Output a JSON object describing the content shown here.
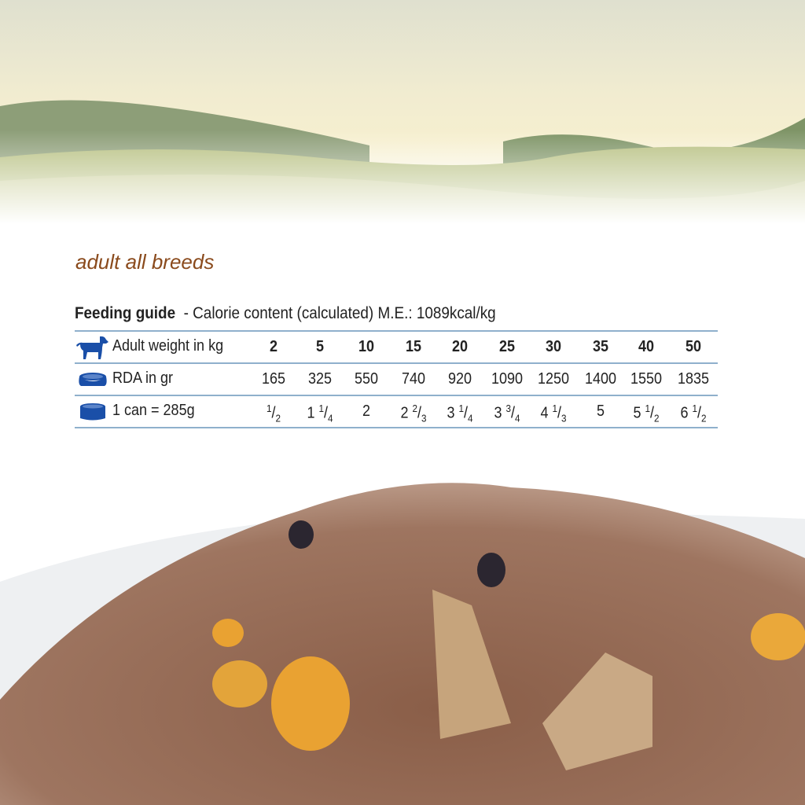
{
  "subtitle": "adult all breeds",
  "guide": {
    "title": "Feeding guide",
    "description": "- Calorie content (calculated) M.E.: 1089kcal/kg"
  },
  "colors": {
    "icon_blue": "#1a4fa8",
    "rule": "#8fb0cc",
    "subtitle_brown": "#8a4a1c"
  },
  "table": {
    "rows": [
      {
        "icon": "dog-icon",
        "label": "Adult weight in kg",
        "values": [
          "2",
          "5",
          "10",
          "15",
          "20",
          "25",
          "30",
          "35",
          "40",
          "50"
        ]
      },
      {
        "icon": "bowl-icon",
        "label": "RDA in gr",
        "values": [
          "165",
          "325",
          "550",
          "740",
          "920",
          "1090",
          "1250",
          "1400",
          "1550",
          "1835"
        ]
      },
      {
        "icon": "can-icon",
        "label": "1 can = 285g",
        "fractions": [
          {
            "whole": "",
            "num": "1",
            "den": "2"
          },
          {
            "whole": "1",
            "num": "1",
            "den": "4"
          },
          {
            "whole": "2",
            "num": "",
            "den": ""
          },
          {
            "whole": "2",
            "num": "2",
            "den": "3"
          },
          {
            "whole": "3",
            "num": "1",
            "den": "4"
          },
          {
            "whole": "3",
            "num": "3",
            "den": "4"
          },
          {
            "whole": "4",
            "num": "1",
            "den": "3"
          },
          {
            "whole": "5",
            "num": "",
            "den": ""
          },
          {
            "whole": "5",
            "num": "1",
            "den": "2"
          },
          {
            "whole": "6",
            "num": "1",
            "den": "2"
          }
        ]
      }
    ]
  }
}
